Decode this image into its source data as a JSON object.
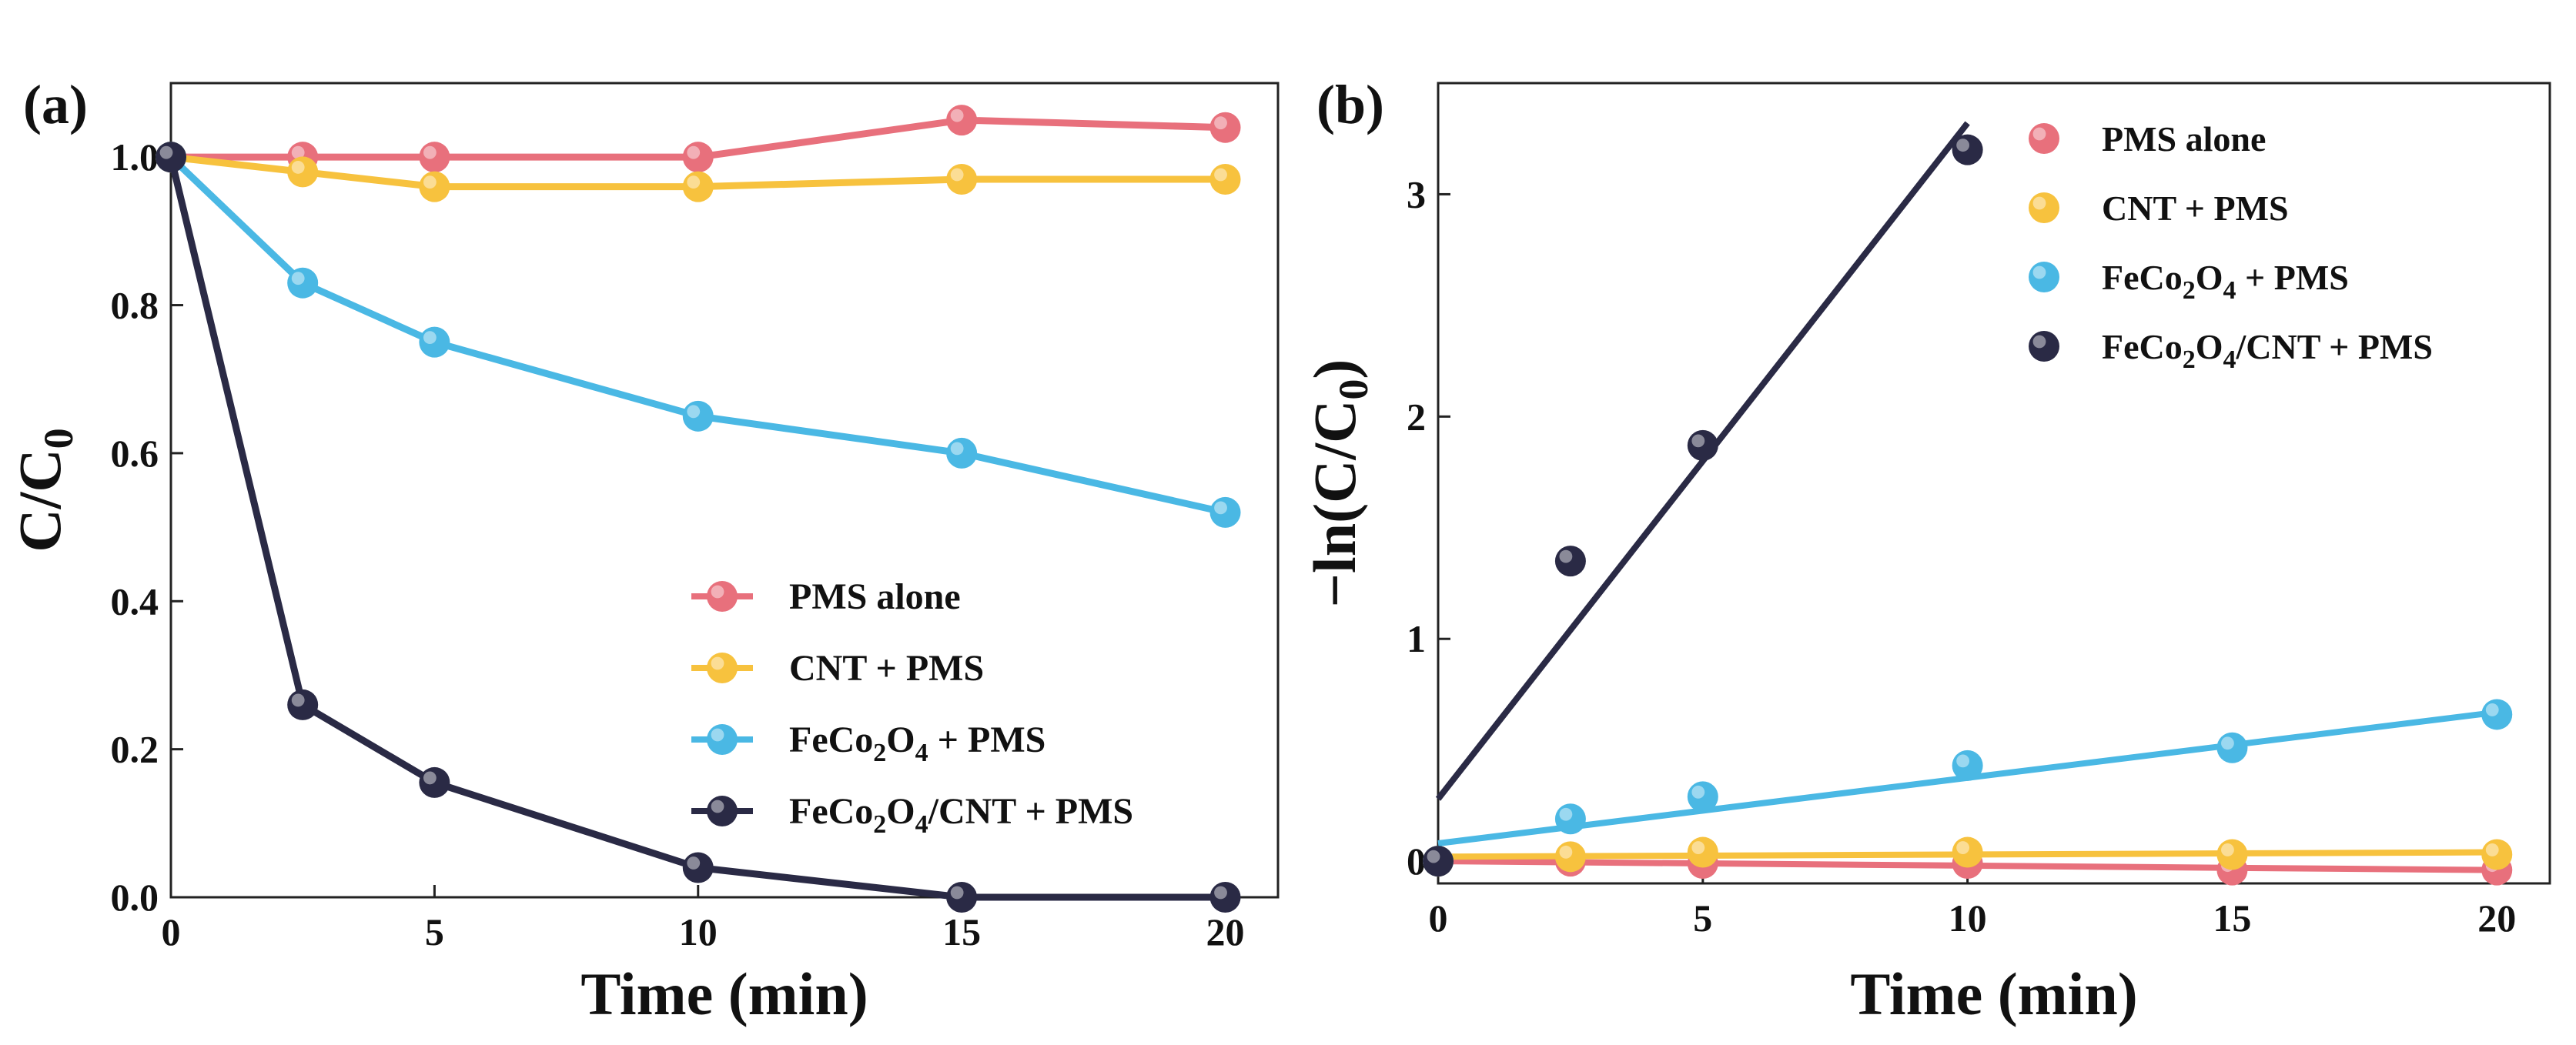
{
  "chart_data": [
    {
      "type": "line",
      "panel_label": "(a)",
      "xlabel": "Time (min)",
      "ylabel": {
        "base": "C/C",
        "sub": "0"
      },
      "xlim": [
        0,
        21
      ],
      "ylim": [
        0,
        1.1
      ],
      "x_ticks": [
        0,
        5,
        10,
        15,
        20
      ],
      "y_ticks": [
        0.0,
        0.2,
        0.4,
        0.6,
        0.8,
        1.0
      ],
      "x_tick_labels": [
        "0",
        "5",
        "10",
        "15",
        "20"
      ],
      "y_tick_labels": [
        "0.0",
        "0.2",
        "0.4",
        "0.6",
        "0.8",
        "1.0"
      ],
      "legend_position": "bottom-right",
      "x": [
        0,
        2.5,
        5,
        10,
        15,
        20
      ],
      "series": [
        {
          "name": "PMS alone",
          "parts": [
            {
              "t": "PMS alone"
            }
          ],
          "color": "#e8707c",
          "values": [
            1.0,
            1.0,
            1.0,
            1.0,
            1.05,
            1.04
          ]
        },
        {
          "name": "CNT + PMS",
          "parts": [
            {
              "t": "CNT + PMS"
            }
          ],
          "color": "#f7c23e",
          "values": [
            1.0,
            0.98,
            0.96,
            0.96,
            0.97,
            0.97
          ]
        },
        {
          "name": "FeCo2O4 + PMS",
          "parts": [
            {
              "t": "FeCo"
            },
            {
              "t": "2",
              "sub": true
            },
            {
              "t": "O"
            },
            {
              "t": "4",
              "sub": true
            },
            {
              "t": " + PMS"
            }
          ],
          "color": "#4ab8e4",
          "values": [
            1.0,
            0.83,
            0.75,
            0.65,
            0.6,
            0.52
          ]
        },
        {
          "name": "FeCo2O4/CNT + PMS",
          "parts": [
            {
              "t": "FeCo"
            },
            {
              "t": "2",
              "sub": true
            },
            {
              "t": "O"
            },
            {
              "t": "4",
              "sub": true
            },
            {
              "t": "/CNT + PMS"
            }
          ],
          "color": "#2a2a45",
          "values": [
            1.0,
            0.26,
            0.155,
            0.04,
            0.0,
            0.0
          ]
        }
      ]
    },
    {
      "type": "scatter",
      "panel_label": "(b)",
      "xlabel": "Time (min)",
      "ylabel": {
        "base": "−ln(C/C",
        "sub": "0",
        "tail": ")"
      },
      "xlim": [
        0,
        21
      ],
      "ylim": [
        -0.1,
        3.5
      ],
      "x_ticks": [
        0,
        5,
        10,
        15,
        20
      ],
      "y_ticks": [
        0,
        1,
        2,
        3
      ],
      "x_tick_labels": [
        "0",
        "5",
        "10",
        "15",
        "20"
      ],
      "y_tick_labels": [
        "0",
        "1",
        "2",
        "3"
      ],
      "legend_position": "top-right",
      "series": [
        {
          "name": "PMS alone",
          "parts": [
            {
              "t": "PMS alone"
            }
          ],
          "color": "#e8707c",
          "x": [
            0,
            2.5,
            5,
            10,
            15,
            20
          ],
          "values": [
            0.0,
            0.0,
            -0.01,
            -0.01,
            -0.04,
            -0.04
          ],
          "fit": {
            "x": [
              0,
              20
            ],
            "y": [
              0.0,
              -0.04
            ]
          }
        },
        {
          "name": "CNT + PMS",
          "parts": [
            {
              "t": "CNT + PMS"
            }
          ],
          "color": "#f7c23e",
          "x": [
            0,
            2.5,
            5,
            10,
            15,
            20
          ],
          "values": [
            0.0,
            0.02,
            0.04,
            0.04,
            0.03,
            0.03
          ],
          "fit": {
            "x": [
              0,
              20
            ],
            "y": [
              0.02,
              0.04
            ]
          }
        },
        {
          "name": "FeCo2O4 + PMS",
          "parts": [
            {
              "t": "FeCo"
            },
            {
              "t": "2",
              "sub": true
            },
            {
              "t": "O"
            },
            {
              "t": "4",
              "sub": true
            },
            {
              "t": " + PMS"
            }
          ],
          "color": "#4ab8e4",
          "x": [
            0,
            2.5,
            5,
            10,
            15,
            20
          ],
          "values": [
            0.0,
            0.19,
            0.29,
            0.43,
            0.51,
            0.66
          ],
          "fit": {
            "x": [
              0,
              20
            ],
            "y": [
              0.08,
              0.67
            ]
          }
        },
        {
          "name": "FeCo2O4/CNT + PMS",
          "parts": [
            {
              "t": "FeCo"
            },
            {
              "t": "2",
              "sub": true
            },
            {
              "t": "O"
            },
            {
              "t": "4",
              "sub": true
            },
            {
              "t": "/CNT + PMS"
            }
          ],
          "color": "#2a2a45",
          "x": [
            0,
            2.5,
            5,
            10
          ],
          "values": [
            0.0,
            1.35,
            1.87,
            3.2
          ],
          "fit": {
            "x": [
              0,
              10
            ],
            "y": [
              0.28,
              3.32
            ]
          }
        }
      ]
    }
  ]
}
